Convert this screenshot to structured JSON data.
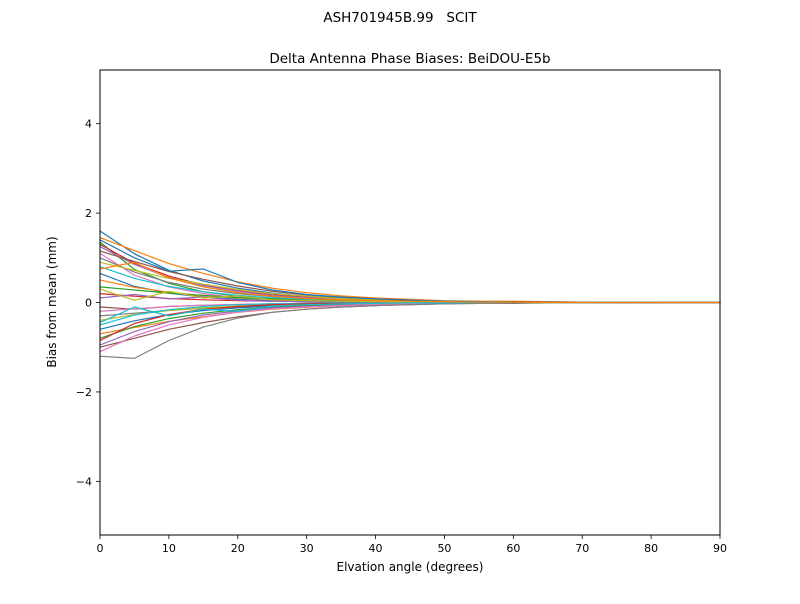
{
  "chart_data": {
    "type": "line",
    "title": "ASH701945B.99   SCIT",
    "subtitle": "Delta Antenna Phase Biases: BeiDOU-E5b",
    "xlabel": "Elvation angle (degrees)",
    "ylabel": "Bias from mean (mm)",
    "xlim": [
      0,
      90
    ],
    "ylim": [
      -5.2,
      5.2
    ],
    "xticks": [
      0,
      10,
      20,
      30,
      40,
      50,
      60,
      70,
      80,
      90
    ],
    "yticks": [
      -4,
      -2,
      0,
      2,
      4
    ],
    "grid": false,
    "legend": "none",
    "x": [
      0,
      5,
      10,
      15,
      20,
      25,
      30,
      35,
      40,
      45,
      50,
      55,
      60,
      65,
      70,
      75,
      80,
      85,
      90
    ],
    "series": [
      {
        "color": "#1f77b4",
        "y": [
          1.6,
          1.09,
          0.72,
          0.48,
          0.32,
          0.21,
          0.14,
          0.1,
          0.06,
          0.05,
          0.03,
          0.02,
          0.02,
          0.01,
          0.01,
          0.0,
          0.01,
          0.0,
          0.0
        ]
      },
      {
        "color": "#ff7f0e",
        "y": [
          1.45,
          1.16,
          0.87,
          0.65,
          0.46,
          0.32,
          0.22,
          0.15,
          0.1,
          0.07,
          0.04,
          0.03,
          0.03,
          0.02,
          0.01,
          0.01,
          0.01,
          0.0,
          0.0
        ]
      },
      {
        "color": "#2ca02c",
        "y": [
          1.35,
          0.74,
          0.43,
          0.24,
          0.14,
          0.08,
          0.05,
          0.03,
          0.03,
          0.01,
          0.01,
          0.01,
          0.0,
          0.0,
          0.01,
          0.0,
          0.0,
          0.0,
          0.0
        ]
      },
      {
        "color": "#d62728",
        "y": [
          1.3,
          0.88,
          0.59,
          0.39,
          0.26,
          0.17,
          0.12,
          0.08,
          0.05,
          0.04,
          0.03,
          0.01,
          0.01,
          0.01,
          0.0,
          0.0,
          0.0,
          0.01,
          0.0
        ]
      },
      {
        "color": "#9467bd",
        "y": [
          1.25,
          0.85,
          0.56,
          0.38,
          0.25,
          0.16,
          0.11,
          0.07,
          0.05,
          0.04,
          0.02,
          0.02,
          0.01,
          0.0,
          0.01,
          0.0,
          0.0,
          0.0,
          0.0
        ]
      },
      {
        "color": "#8c564b",
        "y": [
          1.15,
          0.92,
          0.69,
          0.52,
          0.37,
          0.25,
          0.17,
          0.12,
          0.08,
          0.06,
          0.03,
          0.02,
          0.02,
          0.01,
          0.01,
          0.0,
          0.01,
          0.0,
          0.0
        ]
      },
      {
        "color": "#e377c2",
        "y": [
          1.1,
          0.61,
          0.35,
          0.2,
          0.11,
          0.07,
          0.04,
          0.02,
          0.02,
          0.01,
          0.01,
          0.0,
          0.0,
          0.01,
          0.0,
          0.0,
          0.0,
          0.0,
          0.0
        ]
      },
      {
        "color": "#7f7f7f",
        "y": [
          1.0,
          0.68,
          0.45,
          0.3,
          0.2,
          0.13,
          0.09,
          0.06,
          0.04,
          0.03,
          0.02,
          0.01,
          0.01,
          0.0,
          0.0,
          0.01,
          0.0,
          0.0,
          0.0
        ]
      },
      {
        "color": "#bcbd22",
        "y": [
          0.9,
          0.72,
          0.54,
          0.41,
          0.29,
          0.2,
          0.14,
          0.09,
          0.06,
          0.05,
          0.03,
          0.02,
          0.01,
          0.01,
          0.0,
          0.0,
          0.0,
          0.0,
          0.0
        ]
      },
      {
        "color": "#17becf",
        "y": [
          0.8,
          0.54,
          0.36,
          0.24,
          0.16,
          0.1,
          0.07,
          0.05,
          0.03,
          0.02,
          0.02,
          0.01,
          0.01,
          0.0,
          0.0,
          0.0,
          0.0,
          0.0,
          0.0
        ]
      },
      {
        "color": "#1f77b4",
        "y": [
          0.65,
          0.36,
          0.21,
          0.12,
          0.07,
          0.04,
          0.03,
          0.01,
          0.01,
          0.01,
          0.0,
          0.01,
          0.0,
          0.0,
          0.0,
          0.0,
          0.0,
          0.0,
          0.0
        ]
      },
      {
        "color": "#ff7f0e",
        "y": [
          0.5,
          0.34,
          0.23,
          0.15,
          0.1,
          0.07,
          0.05,
          0.03,
          0.02,
          0.02,
          0.01,
          0.01,
          0.0,
          0.0,
          0.0,
          0.0,
          0.0,
          0.0,
          0.0
        ]
      },
      {
        "color": "#2ca02c",
        "y": [
          0.35,
          0.28,
          0.21,
          0.16,
          0.11,
          0.08,
          0.05,
          0.04,
          0.02,
          0.02,
          0.01,
          0.01,
          0.0,
          0.0,
          0.0,
          0.0,
          0.0,
          0.0,
          0.0
        ]
      },
      {
        "color": "#d62728",
        "y": [
          0.2,
          0.14,
          0.09,
          0.06,
          0.04,
          0.03,
          0.02,
          0.01,
          0.01,
          0.01,
          0.0,
          0.0,
          0.0,
          0.0,
          0.0,
          0.0,
          0.0,
          0.0,
          0.0
        ]
      },
      {
        "color": "#9467bd",
        "y": [
          0.1,
          0.18,
          0.08,
          0.12,
          0.05,
          0.03,
          0.02,
          0.02,
          0.01,
          0.0,
          0.01,
          0.0,
          0.0,
          0.0,
          0.0,
          0.0,
          0.0,
          0.0,
          0.0
        ]
      },
      {
        "color": "#8c564b",
        "y": [
          -0.1,
          -0.15,
          -0.09,
          -0.06,
          -0.05,
          -0.03,
          -0.02,
          -0.01,
          -0.01,
          0.0,
          -0.01,
          0.0,
          0.0,
          0.0,
          0.0,
          0.0,
          0.0,
          0.0,
          0.0
        ]
      },
      {
        "color": "#e377c2",
        "y": [
          -0.2,
          -0.14,
          -0.09,
          -0.06,
          -0.04,
          -0.03,
          -0.02,
          -0.01,
          -0.01,
          0.0,
          0.0,
          -0.01,
          0.0,
          0.0,
          0.0,
          0.0,
          0.0,
          0.0,
          0.0
        ]
      },
      {
        "color": "#7f7f7f",
        "y": [
          -0.3,
          -0.24,
          -0.18,
          -0.13,
          -0.1,
          -0.07,
          -0.04,
          -0.03,
          -0.02,
          -0.01,
          -0.01,
          0.0,
          -0.01,
          0.0,
          0.0,
          0.0,
          0.0,
          0.0,
          0.0
        ]
      },
      {
        "color": "#bcbd22",
        "y": [
          -0.4,
          -0.27,
          -0.18,
          -0.12,
          -0.08,
          -0.05,
          -0.04,
          -0.02,
          -0.02,
          -0.01,
          -0.01,
          0.0,
          0.0,
          0.0,
          -0.01,
          0.0,
          0.0,
          0.0,
          0.0
        ]
      },
      {
        "color": "#17becf",
        "y": [
          -0.5,
          -0.28,
          -0.16,
          -0.09,
          -0.05,
          -0.03,
          -0.02,
          -0.01,
          -0.01,
          0.0,
          -0.01,
          0.0,
          0.0,
          0.0,
          0.0,
          0.0,
          0.0,
          0.0,
          0.0
        ]
      },
      {
        "color": "#1f77b4",
        "y": [
          -0.6,
          -0.41,
          -0.27,
          -0.18,
          -0.12,
          -0.08,
          -0.05,
          -0.04,
          -0.02,
          -0.02,
          -0.01,
          -0.01,
          0.0,
          0.0,
          0.0,
          0.0,
          0.0,
          0.0,
          0.0
        ]
      },
      {
        "color": "#ff7f0e",
        "y": [
          -0.7,
          -0.56,
          -0.42,
          -0.32,
          -0.22,
          -0.15,
          -0.11,
          -0.07,
          -0.05,
          -0.04,
          -0.02,
          -0.01,
          -0.01,
          -0.01,
          0.0,
          0.0,
          0.0,
          0.0,
          0.0
        ]
      },
      {
        "color": "#2ca02c",
        "y": [
          -0.8,
          -0.54,
          -0.36,
          -0.24,
          -0.16,
          -0.1,
          -0.07,
          -0.05,
          -0.03,
          -0.02,
          -0.02,
          -0.01,
          -0.01,
          0.0,
          0.0,
          0.0,
          0.0,
          0.0,
          0.0
        ]
      },
      {
        "color": "#d62728",
        "y": [
          -0.85,
          -0.47,
          -0.27,
          -0.15,
          -0.09,
          -0.05,
          -0.03,
          -0.02,
          -0.02,
          -0.01,
          -0.01,
          0.0,
          0.0,
          0.0,
          0.0,
          -0.01,
          0.0,
          0.0,
          0.0
        ]
      },
      {
        "color": "#9467bd",
        "y": [
          -0.95,
          -0.65,
          -0.43,
          -0.28,
          -0.19,
          -0.12,
          -0.09,
          -0.06,
          -0.04,
          -0.03,
          -0.02,
          -0.01,
          -0.01,
          -0.01,
          0.0,
          0.0,
          0.0,
          0.0,
          0.0
        ]
      },
      {
        "color": "#8c564b",
        "y": [
          -1.0,
          -0.8,
          -0.6,
          -0.45,
          -0.32,
          -0.22,
          -0.15,
          -0.1,
          -0.07,
          -0.05,
          -0.03,
          -0.02,
          -0.02,
          -0.01,
          -0.01,
          0.0,
          -0.01,
          0.0,
          0.0
        ]
      },
      {
        "color": "#e377c2",
        "y": [
          -1.1,
          -0.75,
          -0.5,
          -0.33,
          -0.22,
          -0.14,
          -0.1,
          -0.07,
          -0.04,
          -0.03,
          -0.02,
          -0.02,
          -0.01,
          -0.01,
          0.0,
          0.0,
          0.0,
          0.0,
          0.0
        ]
      },
      {
        "color": "#7f7f7f",
        "y": [
          -1.2,
          -1.25,
          -0.85,
          -0.55,
          -0.35,
          -0.22,
          -0.15,
          -0.1,
          -0.07,
          -0.05,
          -0.03,
          -0.02,
          -0.01,
          -0.01,
          -0.01,
          0.0,
          0.0,
          0.0,
          0.0
        ]
      },
      {
        "color": "#bcbd22",
        "y": [
          0.3,
          0.05,
          0.25,
          0.1,
          0.15,
          0.06,
          0.04,
          0.03,
          0.02,
          0.01,
          0.01,
          0.0,
          0.0,
          0.0,
          0.0,
          0.0,
          0.0,
          0.0,
          0.0
        ]
      },
      {
        "color": "#17becf",
        "y": [
          -0.45,
          -0.1,
          -0.3,
          -0.15,
          -0.2,
          -0.08,
          -0.05,
          -0.03,
          -0.02,
          -0.01,
          -0.01,
          0.0,
          0.0,
          0.0,
          0.0,
          0.0,
          0.0,
          0.0,
          0.0
        ]
      },
      {
        "color": "#1f77b4",
        "y": [
          1.4,
          1.0,
          0.7,
          0.75,
          0.45,
          0.28,
          0.18,
          0.12,
          0.08,
          0.05,
          0.03,
          0.02,
          0.01,
          0.01,
          0.0,
          0.0,
          0.0,
          0.0,
          0.0
        ]
      },
      {
        "color": "#ff7f0e",
        "y": [
          0.75,
          0.9,
          0.55,
          0.35,
          0.22,
          0.14,
          0.09,
          0.06,
          0.04,
          0.03,
          0.02,
          0.01,
          0.01,
          0.0,
          0.0,
          0.0,
          0.0,
          0.0,
          0.0
        ]
      }
    ]
  }
}
